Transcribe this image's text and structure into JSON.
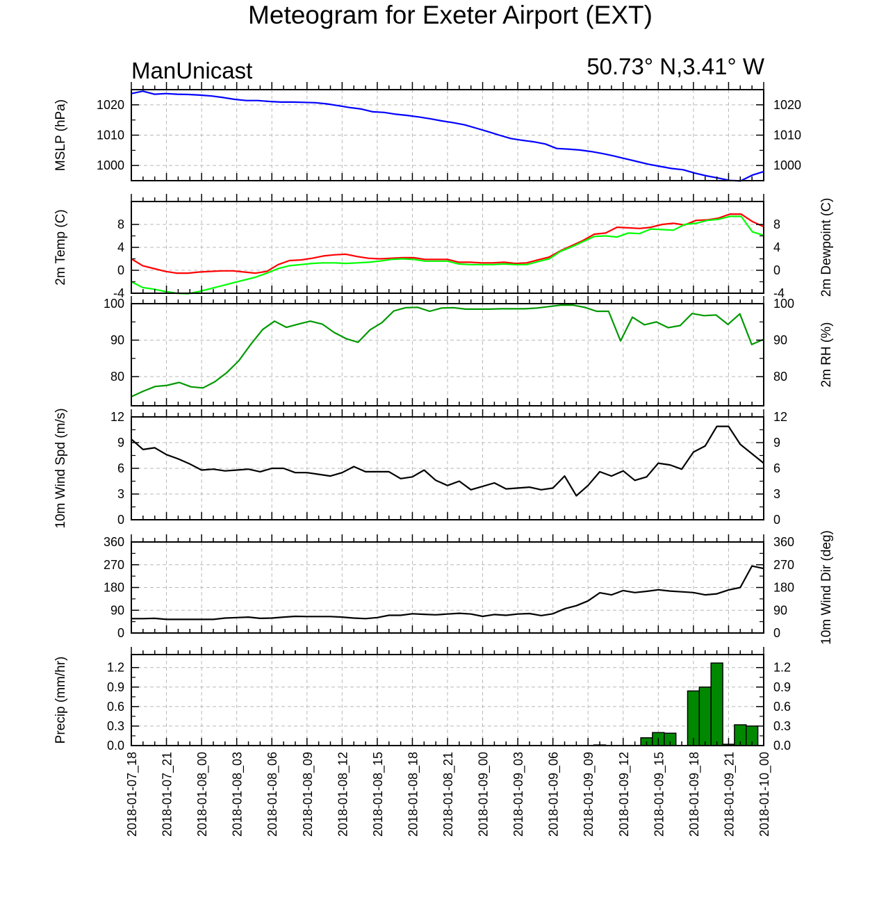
{
  "title": "Meteogram for Exeter Airport (EXT)",
  "left_label": "ManUnicast",
  "right_label": "50.73° N,3.41° W",
  "x_tick_labels": [
    "2018-01-07_18",
    "2018-01-07_21",
    "2018-01-08_00",
    "2018-01-08_03",
    "2018-01-08_06",
    "2018-01-08_09",
    "2018-01-08_12",
    "2018-01-08_15",
    "2018-01-08_18",
    "2018-01-08_21",
    "2018-01-09_00",
    "2018-01-09_03",
    "2018-01-09_06",
    "2018-01-09_09",
    "2018-01-09_12",
    "2018-01-09_15",
    "2018-01-09_18",
    "2018-01-09_21",
    "2018-01-10_00"
  ],
  "chart_data": [
    {
      "type": "line",
      "ylabel": "MSLP (hPa)",
      "ylim": [
        995,
        1025
      ],
      "ticks": [
        1000,
        1010,
        1020
      ],
      "tick_labels": [
        "1000",
        "1010",
        "1020"
      ],
      "grid": true,
      "series": [
        {
          "color": "#0000ff",
          "values": [
            1023.7,
            1024.5,
            1023.5,
            1023.7,
            1023.5,
            1023.4,
            1023.2,
            1022.9,
            1022.4,
            1021.8,
            1021.4,
            1021.4,
            1021.1,
            1020.9,
            1020.9,
            1020.8,
            1020.7,
            1020.3,
            1019.7,
            1019.1,
            1018.6,
            1017.7,
            1017.5,
            1016.9,
            1016.5,
            1016.0,
            1015.4,
            1014.7,
            1014.1,
            1013.4,
            1012.3,
            1011.2,
            1010.0,
            1008.9,
            1008.3,
            1007.8,
            1007.1,
            1005.6,
            1005.4,
            1005.1,
            1004.6,
            1003.9,
            1003.1,
            1002.2,
            1001.3,
            1000.4,
            999.7,
            999.0,
            998.6,
            997.5,
            996.6,
            995.9,
            995.1,
            994.9,
            996.8,
            998.0
          ]
        }
      ]
    },
    {
      "type": "line",
      "ylabel": "2m Temp (C)",
      "ylabel_right": "2m Dewpoint (C)",
      "ylim": [
        -4,
        12
      ],
      "ticks": [
        -4,
        0,
        4,
        8
      ],
      "tick_labels": [
        "-4",
        "0",
        "4",
        "8"
      ],
      "grid": true,
      "series": [
        {
          "color": "#ff0000",
          "values": [
            2.0,
            0.8,
            0.3,
            -0.2,
            -0.5,
            -0.5,
            -0.3,
            -0.2,
            -0.1,
            -0.1,
            -0.3,
            -0.5,
            -0.2,
            1.0,
            1.7,
            1.8,
            2.1,
            2.5,
            2.7,
            2.8,
            2.4,
            2.1,
            2.0,
            2.1,
            2.2,
            2.2,
            1.9,
            1.9,
            1.9,
            1.4,
            1.4,
            1.3,
            1.3,
            1.4,
            1.2,
            1.3,
            1.8,
            2.3,
            3.4,
            4.3,
            5.2,
            6.3,
            6.5,
            7.5,
            7.4,
            7.3,
            7.5,
            8.0,
            8.2,
            7.9,
            8.7,
            8.8,
            9.1,
            9.8,
            9.8,
            8.5,
            7.6
          ]
        },
        {
          "color": "#00ff00",
          "values": [
            -2.0,
            -3.0,
            -3.3,
            -3.7,
            -4.0,
            -4.1,
            -3.7,
            -3.2,
            -2.7,
            -2.2,
            -1.7,
            -1.2,
            -0.5,
            0.3,
            0.8,
            1.0,
            1.2,
            1.3,
            1.3,
            1.2,
            1.3,
            1.4,
            1.6,
            1.9,
            2.0,
            1.9,
            1.6,
            1.6,
            1.6,
            1.1,
            1.0,
            1.0,
            1.0,
            1.1,
            1.0,
            1.0,
            1.5,
            2.0,
            3.3,
            4.1,
            5.0,
            5.9,
            6.0,
            5.8,
            6.5,
            6.4,
            7.2,
            7.1,
            7.0,
            8.0,
            8.2,
            8.7,
            8.9,
            9.4,
            9.4,
            6.7,
            6.1
          ]
        }
      ]
    },
    {
      "type": "line",
      "ylabel_right": "2m RH (%)",
      "ylim": [
        72,
        100
      ],
      "ticks": [
        80,
        90,
        100
      ],
      "tick_labels": [
        "80",
        "90",
        "100"
      ],
      "grid": true,
      "series": [
        {
          "color": "#009900",
          "values": [
            74.5,
            76.0,
            77.3,
            77.6,
            78.4,
            77.2,
            76.9,
            78.6,
            81.1,
            84.3,
            88.8,
            92.9,
            95.2,
            93.5,
            94.4,
            95.2,
            94.4,
            92.1,
            90.4,
            89.4,
            92.8,
            94.8,
            98.0,
            98.9,
            99.0,
            97.9,
            98.8,
            98.9,
            98.5,
            98.5,
            98.5,
            98.6,
            98.6,
            98.6,
            98.8,
            99.2,
            99.6,
            99.6,
            99.0,
            97.9,
            97.9,
            89.8,
            96.3,
            94.2,
            95.0,
            93.4,
            94.0,
            97.3,
            96.7,
            96.9,
            94.3,
            97.2,
            88.8,
            90.2
          ]
        }
      ]
    },
    {
      "type": "line",
      "ylabel": "10m Wind Spd (m/s)",
      "ylim": [
        0,
        12
      ],
      "ticks": [
        0,
        3,
        6,
        9,
        12
      ],
      "tick_labels": [
        "0",
        "3",
        "6",
        "9",
        "12"
      ],
      "grid": true,
      "series": [
        {
          "color": "#000000",
          "values": [
            9.4,
            8.2,
            8.4,
            7.6,
            7.1,
            6.5,
            5.8,
            5.9,
            5.7,
            5.8,
            5.9,
            5.6,
            6.0,
            6.0,
            5.5,
            5.5,
            5.3,
            5.1,
            5.5,
            6.2,
            5.6,
            5.6,
            5.6,
            4.8,
            5.0,
            5.8,
            4.6,
            4.0,
            4.5,
            3.5,
            3.9,
            4.3,
            3.6,
            3.7,
            3.8,
            3.5,
            3.7,
            5.1,
            2.8,
            4.0,
            5.6,
            5.1,
            5.7,
            4.6,
            5.0,
            6.6,
            6.4,
            5.9,
            7.9,
            8.6,
            10.9,
            10.9,
            8.8,
            7.7,
            6.6
          ]
        }
      ]
    },
    {
      "type": "line",
      "ylabel_right": "10m Wind Dir (deg)",
      "ylim": [
        0,
        360
      ],
      "ticks": [
        0,
        90,
        180,
        270,
        360
      ],
      "tick_labels": [
        "0",
        "90",
        "180",
        "270",
        "360"
      ],
      "grid": true,
      "series": [
        {
          "color": "#000000",
          "values": [
            57,
            57,
            58,
            54,
            54,
            54,
            54,
            54,
            59,
            61,
            63,
            58,
            59,
            63,
            66,
            65,
            65,
            65,
            63,
            59,
            57,
            61,
            70,
            70,
            76,
            74,
            72,
            75,
            78,
            75,
            66,
            73,
            70,
            75,
            77,
            69,
            76,
            96,
            108,
            127,
            159,
            151,
            168,
            160,
            165,
            171,
            166,
            163,
            160,
            151,
            155,
            170,
            180,
            265,
            255
          ]
        }
      ]
    },
    {
      "type": "bar",
      "ylabel": "Precip (mm/hr)",
      "ylim": [
        0,
        1.4
      ],
      "ticks": [
        0.0,
        0.3,
        0.6,
        0.9,
        1.2
      ],
      "tick_labels": [
        "0.0",
        "0.3",
        "0.6",
        "0.9",
        "1.2"
      ],
      "grid": true,
      "bar_color": "#008800",
      "bars": [
        {
          "hour": 40,
          "value": 0.01
        },
        {
          "hour": 44,
          "value": 0.12
        },
        {
          "hour": 45,
          "value": 0.2
        },
        {
          "hour": 46,
          "value": 0.19
        },
        {
          "hour": 48,
          "value": 0.84
        },
        {
          "hour": 49,
          "value": 0.9
        },
        {
          "hour": 50,
          "value": 1.27
        },
        {
          "hour": 51,
          "value": 0.02
        },
        {
          "hour": 52,
          "value": 0.32
        },
        {
          "hour": 53,
          "value": 0.3
        }
      ]
    }
  ]
}
